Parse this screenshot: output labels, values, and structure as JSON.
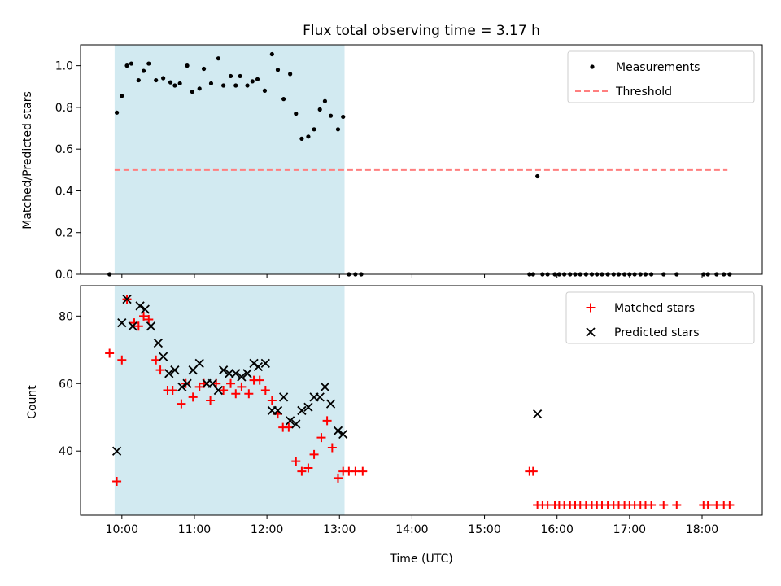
{
  "chart_data": {
    "type": "scatter",
    "title": "Flux total observing time = 3.17 h",
    "xlabel": "Time (UTC)",
    "x_unit": "hours UTC",
    "xlim": [
      9.43,
      18.83
    ],
    "x_ticks": [
      {
        "value": 10,
        "label": "10:00"
      },
      {
        "value": 11,
        "label": "11:00"
      },
      {
        "value": 12,
        "label": "12:00"
      },
      {
        "value": 13,
        "label": "13:00"
      },
      {
        "value": 14,
        "label": "14:00"
      },
      {
        "value": 15,
        "label": "15:00"
      },
      {
        "value": 16,
        "label": "16:00"
      },
      {
        "value": 17,
        "label": "17:00"
      },
      {
        "value": 18,
        "label": "18:00"
      }
    ],
    "shaded_span": {
      "x_start": 9.9,
      "x_end": 13.07,
      "color": "#add8e6"
    },
    "panels": [
      {
        "ylabel": "Matched/Predicted stars",
        "ylim": [
          0,
          1.1
        ],
        "y_ticks": [
          {
            "value": 0.0,
            "label": "0.0"
          },
          {
            "value": 0.2,
            "label": "0.2"
          },
          {
            "value": 0.4,
            "label": "0.4"
          },
          {
            "value": 0.6,
            "label": "0.6"
          },
          {
            "value": 0.8,
            "label": "0.8"
          },
          {
            "value": 1.0,
            "label": "1.0"
          }
        ],
        "legend_position": "top-right",
        "threshold": {
          "name": "Threshold",
          "y": 0.5,
          "x_range": [
            9.9,
            18.35
          ],
          "color": "#ff7f7f"
        },
        "series": [
          {
            "name": "Measurements",
            "marker": "dot",
            "color": "#000000",
            "points": [
              [
                9.83,
                0.0
              ],
              [
                9.93,
                0.775
              ],
              [
                10.0,
                0.855
              ],
              [
                10.07,
                1.0
              ],
              [
                10.13,
                1.01
              ],
              [
                10.23,
                0.93
              ],
              [
                10.3,
                0.975
              ],
              [
                10.37,
                1.01
              ],
              [
                10.47,
                0.93
              ],
              [
                10.57,
                0.94
              ],
              [
                10.67,
                0.92
              ],
              [
                10.73,
                0.905
              ],
              [
                10.8,
                0.915
              ],
              [
                10.9,
                1.0
              ],
              [
                10.97,
                0.875
              ],
              [
                11.07,
                0.89
              ],
              [
                11.13,
                0.985
              ],
              [
                11.23,
                0.915
              ],
              [
                11.33,
                1.035
              ],
              [
                11.4,
                0.905
              ],
              [
                11.5,
                0.95
              ],
              [
                11.57,
                0.905
              ],
              [
                11.63,
                0.95
              ],
              [
                11.73,
                0.905
              ],
              [
                11.8,
                0.925
              ],
              [
                11.87,
                0.935
              ],
              [
                11.97,
                0.88
              ],
              [
                12.07,
                1.055
              ],
              [
                12.15,
                0.98
              ],
              [
                12.23,
                0.84
              ],
              [
                12.32,
                0.96
              ],
              [
                12.4,
                0.77
              ],
              [
                12.48,
                0.65
              ],
              [
                12.57,
                0.66
              ],
              [
                12.65,
                0.695
              ],
              [
                12.73,
                0.79
              ],
              [
                12.8,
                0.83
              ],
              [
                12.88,
                0.76
              ],
              [
                12.98,
                0.695
              ],
              [
                13.05,
                0.755
              ],
              [
                13.13,
                0.0
              ],
              [
                13.22,
                0.0
              ],
              [
                13.3,
                0.0
              ],
              [
                15.62,
                0.0
              ],
              [
                15.67,
                0.0
              ],
              [
                15.73,
                0.47
              ],
              [
                15.8,
                0.0
              ],
              [
                15.87,
                0.0
              ],
              [
                15.97,
                0.0
              ],
              [
                16.03,
                0.0
              ],
              [
                16.1,
                0.0
              ],
              [
                16.18,
                0.0
              ],
              [
                16.25,
                0.0
              ],
              [
                16.32,
                0.0
              ],
              [
                16.4,
                0.0
              ],
              [
                16.48,
                0.0
              ],
              [
                16.55,
                0.0
              ],
              [
                16.62,
                0.0
              ],
              [
                16.7,
                0.0
              ],
              [
                16.78,
                0.0
              ],
              [
                16.85,
                0.0
              ],
              [
                16.93,
                0.0
              ],
              [
                17.0,
                0.0
              ],
              [
                17.07,
                0.0
              ],
              [
                17.15,
                0.0
              ],
              [
                17.22,
                0.0
              ],
              [
                17.3,
                0.0
              ],
              [
                17.47,
                0.0
              ],
              [
                17.65,
                0.0
              ],
              [
                18.02,
                0.0
              ],
              [
                18.08,
                0.0
              ],
              [
                18.2,
                0.0
              ],
              [
                18.3,
                0.0
              ],
              [
                18.38,
                0.0
              ]
            ]
          }
        ]
      },
      {
        "ylabel": "Count",
        "ylim": [
          21,
          89
        ],
        "y_ticks": [
          {
            "value": 40,
            "label": "40"
          },
          {
            "value": 60,
            "label": "60"
          },
          {
            "value": 80,
            "label": "80"
          }
        ],
        "legend_position": "top-right",
        "series": [
          {
            "name": "Matched stars",
            "marker": "plus",
            "color": "#ff0000",
            "points": [
              [
                9.83,
                69
              ],
              [
                9.93,
                31
              ],
              [
                10.0,
                67
              ],
              [
                10.07,
                85
              ],
              [
                10.17,
                78
              ],
              [
                10.23,
                77
              ],
              [
                10.3,
                80
              ],
              [
                10.37,
                79
              ],
              [
                10.47,
                67
              ],
              [
                10.53,
                64
              ],
              [
                10.63,
                58
              ],
              [
                10.7,
                58
              ],
              [
                10.82,
                54
              ],
              [
                10.88,
                60
              ],
              [
                10.98,
                56
              ],
              [
                11.07,
                59
              ],
              [
                11.13,
                60
              ],
              [
                11.22,
                55
              ],
              [
                11.3,
                60
              ],
              [
                11.4,
                58
              ],
              [
                11.5,
                60
              ],
              [
                11.57,
                57
              ],
              [
                11.65,
                59
              ],
              [
                11.75,
                57
              ],
              [
                11.82,
                61
              ],
              [
                11.9,
                61
              ],
              [
                11.98,
                58
              ],
              [
                12.07,
                55
              ],
              [
                12.15,
                51
              ],
              [
                12.22,
                47
              ],
              [
                12.3,
                47
              ],
              [
                12.4,
                37
              ],
              [
                12.48,
                34
              ],
              [
                12.57,
                35
              ],
              [
                12.65,
                39
              ],
              [
                12.75,
                44
              ],
              [
                12.83,
                49
              ],
              [
                12.9,
                41
              ],
              [
                12.98,
                32
              ],
              [
                13.05,
                34
              ],
              [
                13.13,
                34
              ],
              [
                13.22,
                34
              ],
              [
                13.32,
                34
              ],
              [
                15.62,
                34
              ],
              [
                15.67,
                34
              ],
              [
                15.73,
                24
              ],
              [
                15.8,
                24
              ],
              [
                15.87,
                24
              ],
              [
                15.97,
                24
              ],
              [
                16.03,
                24
              ],
              [
                16.1,
                24
              ],
              [
                16.18,
                24
              ],
              [
                16.25,
                24
              ],
              [
                16.32,
                24
              ],
              [
                16.4,
                24
              ],
              [
                16.48,
                24
              ],
              [
                16.55,
                24
              ],
              [
                16.62,
                24
              ],
              [
                16.7,
                24
              ],
              [
                16.78,
                24
              ],
              [
                16.85,
                24
              ],
              [
                16.93,
                24
              ],
              [
                17.0,
                24
              ],
              [
                17.07,
                24
              ],
              [
                17.15,
                24
              ],
              [
                17.22,
                24
              ],
              [
                17.3,
                24
              ],
              [
                17.47,
                24
              ],
              [
                17.65,
                24
              ],
              [
                18.02,
                24
              ],
              [
                18.08,
                24
              ],
              [
                18.2,
                24
              ],
              [
                18.3,
                24
              ],
              [
                18.38,
                24
              ]
            ]
          },
          {
            "name": "Predicted stars",
            "marker": "x",
            "color": "#000000",
            "points": [
              [
                9.93,
                40
              ],
              [
                10.0,
                78
              ],
              [
                10.07,
                85
              ],
              [
                10.15,
                77
              ],
              [
                10.25,
                83
              ],
              [
                10.32,
                82
              ],
              [
                10.4,
                77
              ],
              [
                10.5,
                72
              ],
              [
                10.57,
                68
              ],
              [
                10.65,
                63
              ],
              [
                10.73,
                64
              ],
              [
                10.83,
                59
              ],
              [
                10.9,
                60
              ],
              [
                10.98,
                64
              ],
              [
                11.07,
                66
              ],
              [
                11.17,
                60
              ],
              [
                11.25,
                60
              ],
              [
                11.33,
                58
              ],
              [
                11.4,
                64
              ],
              [
                11.48,
                63
              ],
              [
                11.57,
                63
              ],
              [
                11.65,
                62
              ],
              [
                11.73,
                63
              ],
              [
                11.82,
                66
              ],
              [
                11.88,
                65
              ],
              [
                11.98,
                66
              ],
              [
                12.07,
                52
              ],
              [
                12.15,
                52
              ],
              [
                12.23,
                56
              ],
              [
                12.32,
                49
              ],
              [
                12.4,
                48
              ],
              [
                12.48,
                52
              ],
              [
                12.57,
                53
              ],
              [
                12.65,
                56
              ],
              [
                12.73,
                56
              ],
              [
                12.8,
                59
              ],
              [
                12.88,
                54
              ],
              [
                12.98,
                46
              ],
              [
                13.05,
                45
              ],
              [
                15.73,
                51
              ]
            ]
          }
        ]
      }
    ]
  }
}
